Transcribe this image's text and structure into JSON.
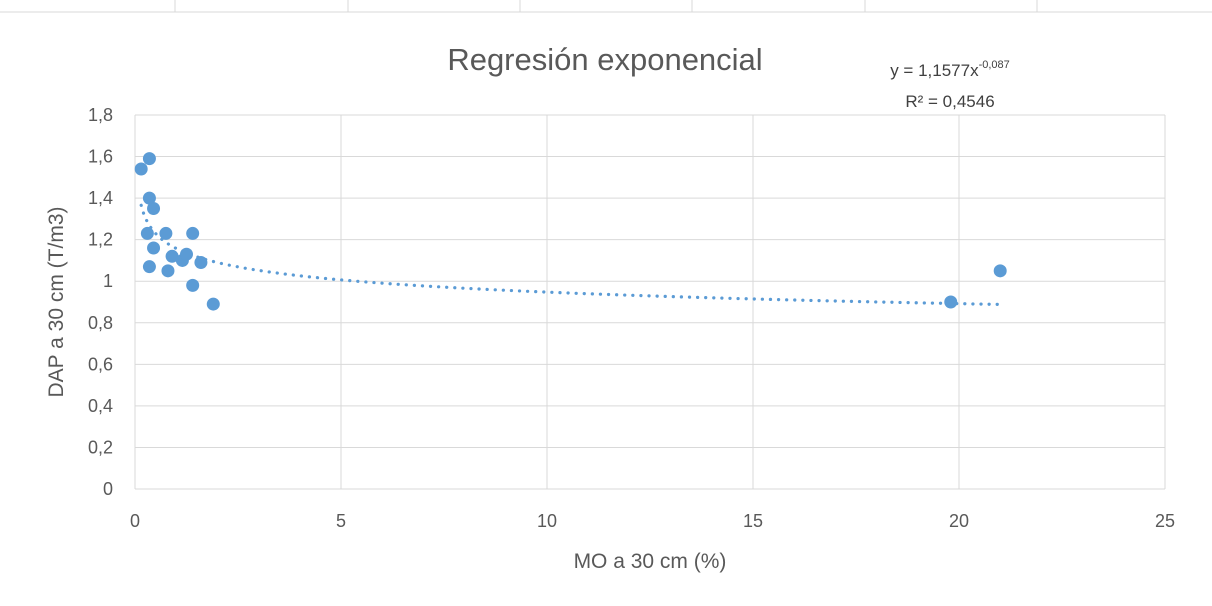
{
  "chart_data": {
    "type": "scatter",
    "title": "Regresión exponencial",
    "xlabel": "MO a 30 cm (%)",
    "ylabel": "DAP a 30 cm (T/m3)",
    "xlim": [
      0,
      25
    ],
    "ylim": [
      0,
      1.8
    ],
    "x_ticks": [
      "0",
      "5",
      "10",
      "15",
      "20",
      "25"
    ],
    "y_ticks": [
      "0",
      "0,2",
      "0,4",
      "0,6",
      "0,8",
      "1",
      "1,2",
      "1,4",
      "1,6",
      "1,8"
    ],
    "grid": true,
    "legend": "none",
    "series": [
      {
        "color": "#5b9bd5",
        "points": [
          {
            "x": 0.15,
            "y": 1.54
          },
          {
            "x": 0.35,
            "y": 1.59
          },
          {
            "x": 0.35,
            "y": 1.4
          },
          {
            "x": 0.45,
            "y": 1.35
          },
          {
            "x": 0.3,
            "y": 1.23
          },
          {
            "x": 0.45,
            "y": 1.16
          },
          {
            "x": 0.35,
            "y": 1.07
          },
          {
            "x": 0.75,
            "y": 1.23
          },
          {
            "x": 0.9,
            "y": 1.12
          },
          {
            "x": 0.8,
            "y": 1.05
          },
          {
            "x": 1.15,
            "y": 1.1
          },
          {
            "x": 1.25,
            "y": 1.13
          },
          {
            "x": 1.4,
            "y": 1.23
          },
          {
            "x": 1.6,
            "y": 1.09
          },
          {
            "x": 1.4,
            "y": 0.98
          },
          {
            "x": 1.9,
            "y": 0.89
          },
          {
            "x": 19.8,
            "y": 0.9
          },
          {
            "x": 21.0,
            "y": 1.05
          }
        ]
      }
    ],
    "trendline": {
      "type": "power",
      "a": 1.1577,
      "b": -0.087,
      "x_range": [
        0.15,
        21.0
      ],
      "style": "dotted",
      "color": "#5b9bd5",
      "equation_text": "y = 1,1577x",
      "equation_exponent": "-0,087",
      "r2_text": "R² = 0,4546"
    }
  }
}
